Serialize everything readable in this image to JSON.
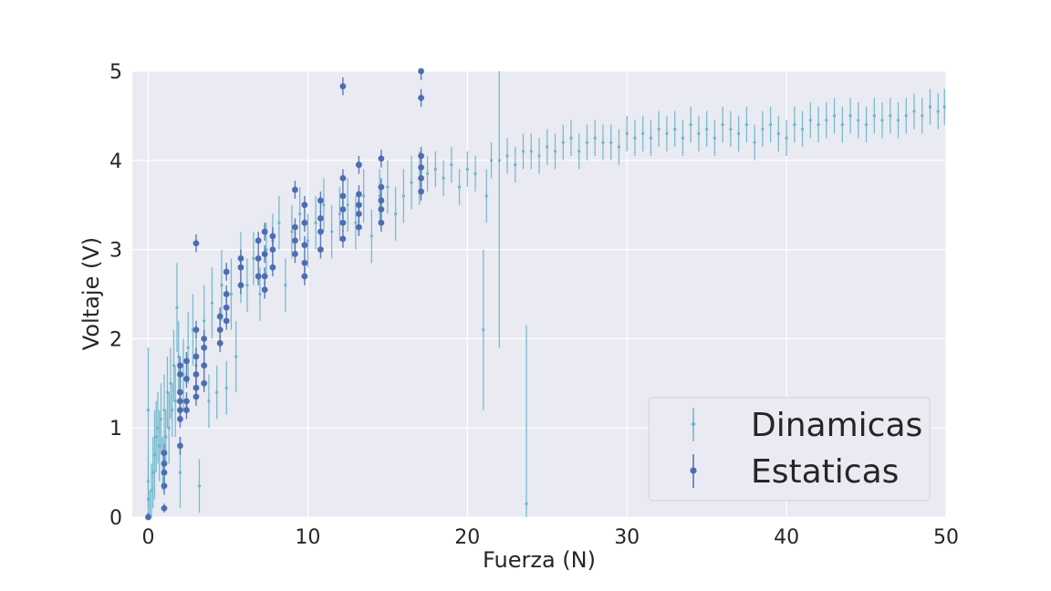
{
  "chart_data": {
    "type": "scatter",
    "xlabel": "Fuerza (N)",
    "ylabel": "Voltaje (V)",
    "xlim": [
      -1,
      50
    ],
    "ylim": [
      0,
      5
    ],
    "xticks": [
      0,
      10,
      20,
      30,
      40,
      50
    ],
    "yticks": [
      0,
      1,
      2,
      3,
      4,
      5
    ],
    "grid": true,
    "legend": {
      "placement": "lower-right"
    },
    "colors": {
      "plot_bg": "#eaeaf2",
      "grid": "#ffffff",
      "dinamicas": "#6ab7cc",
      "estaticas": "#4c6eb0"
    },
    "series": [
      {
        "name": "Dinamicas",
        "marker": "small-dot-errorbar",
        "points": [
          [
            0,
            0.2,
            0.3
          ],
          [
            0,
            0.4,
            0.3
          ],
          [
            0,
            1.2,
            0.7
          ],
          [
            0.1,
            0.0,
            0.3
          ],
          [
            0.2,
            0.3,
            0.3
          ],
          [
            0.3,
            0.5,
            0.4
          ],
          [
            0.4,
            0.7,
            0.5
          ],
          [
            0.5,
            0.9,
            0.4
          ],
          [
            0.6,
            1.0,
            0.4
          ],
          [
            0.7,
            0.8,
            0.4
          ],
          [
            0.8,
            1.1,
            0.4
          ],
          [
            0.9,
            0.6,
            0.3
          ],
          [
            1.0,
            1.2,
            0.4
          ],
          [
            1.1,
            0.9,
            0.3
          ],
          [
            1.2,
            1.4,
            0.4
          ],
          [
            1.3,
            1.0,
            0.4
          ],
          [
            1.4,
            1.5,
            0.4
          ],
          [
            1.5,
            1.2,
            0.3
          ],
          [
            1.6,
            1.7,
            0.4
          ],
          [
            1.7,
            1.3,
            0.4
          ],
          [
            1.8,
            2.35,
            0.5
          ],
          [
            1.9,
            1.8,
            0.4
          ],
          [
            2.0,
            0.5,
            0.4
          ],
          [
            2.2,
            1.6,
            0.4
          ],
          [
            2.5,
            1.9,
            0.4
          ],
          [
            2.8,
            2.1,
            0.4
          ],
          [
            3.0,
            1.7,
            0.3
          ],
          [
            3.2,
            0.35,
            0.3
          ],
          [
            3.5,
            2.2,
            0.4
          ],
          [
            3.8,
            1.3,
            0.3
          ],
          [
            4.0,
            2.4,
            0.4
          ],
          [
            4.3,
            1.4,
            0.3
          ],
          [
            4.6,
            2.6,
            0.4
          ],
          [
            4.9,
            1.45,
            0.3
          ],
          [
            5.2,
            2.5,
            0.4
          ],
          [
            5.5,
            1.8,
            0.4
          ],
          [
            5.8,
            2.8,
            0.4
          ],
          [
            6.2,
            2.6,
            0.3
          ],
          [
            6.6,
            2.9,
            0.3
          ],
          [
            7.0,
            2.5,
            0.3
          ],
          [
            7.4,
            3.0,
            0.3
          ],
          [
            7.8,
            3.1,
            0.3
          ],
          [
            8.2,
            3.3,
            0.3
          ],
          [
            8.6,
            2.6,
            0.3
          ],
          [
            9.0,
            3.2,
            0.3
          ],
          [
            9.5,
            3.4,
            0.3
          ],
          [
            10.0,
            3.1,
            0.3
          ],
          [
            10.5,
            3.3,
            0.3
          ],
          [
            11.0,
            3.5,
            0.3
          ],
          [
            11.5,
            3.2,
            0.3
          ],
          [
            12.0,
            3.4,
            0.3
          ],
          [
            12.5,
            3.5,
            0.3
          ],
          [
            13.0,
            3.3,
            0.3
          ],
          [
            13.5,
            3.6,
            0.3
          ],
          [
            14.0,
            3.15,
            0.3
          ],
          [
            14.5,
            3.6,
            0.3
          ],
          [
            15.0,
            3.7,
            0.3
          ],
          [
            15.5,
            3.4,
            0.3
          ],
          [
            16.0,
            3.6,
            0.3
          ],
          [
            16.5,
            3.75,
            0.3
          ],
          [
            17.0,
            3.8,
            0.3
          ],
          [
            17.5,
            3.85,
            0.2
          ],
          [
            18.0,
            3.9,
            0.2
          ],
          [
            18.5,
            3.8,
            0.2
          ],
          [
            19.0,
            3.95,
            0.2
          ],
          [
            19.5,
            3.7,
            0.2
          ],
          [
            20.0,
            3.9,
            0.2
          ],
          [
            20.5,
            3.85,
            0.2
          ],
          [
            21.0,
            2.1,
            0.9
          ],
          [
            21.2,
            3.6,
            0.3
          ],
          [
            21.5,
            4.0,
            0.2
          ],
          [
            22.0,
            4.0,
            2.1
          ],
          [
            22.5,
            4.05,
            0.2
          ],
          [
            23.0,
            3.95,
            0.2
          ],
          [
            23.5,
            4.1,
            0.2
          ],
          [
            23.7,
            0.15,
            2.0
          ],
          [
            24.0,
            4.1,
            0.2
          ],
          [
            24.5,
            4.05,
            0.2
          ],
          [
            25.0,
            4.15,
            0.2
          ],
          [
            25.5,
            4.1,
            0.2
          ],
          [
            26.0,
            4.2,
            0.2
          ],
          [
            26.5,
            4.25,
            0.2
          ],
          [
            27.0,
            4.1,
            0.2
          ],
          [
            27.5,
            4.2,
            0.2
          ],
          [
            28.0,
            4.25,
            0.2
          ],
          [
            28.5,
            4.2,
            0.2
          ],
          [
            29.0,
            4.2,
            0.2
          ],
          [
            29.5,
            4.15,
            0.2
          ],
          [
            30.0,
            4.3,
            0.2
          ],
          [
            30.5,
            4.25,
            0.2
          ],
          [
            31.0,
            4.3,
            0.2
          ],
          [
            31.5,
            4.25,
            0.2
          ],
          [
            32.0,
            4.35,
            0.2
          ],
          [
            32.5,
            4.3,
            0.2
          ],
          [
            33.0,
            4.35,
            0.2
          ],
          [
            33.5,
            4.25,
            0.2
          ],
          [
            34.0,
            4.4,
            0.2
          ],
          [
            34.5,
            4.3,
            0.2
          ],
          [
            35.0,
            4.35,
            0.2
          ],
          [
            35.5,
            4.25,
            0.2
          ],
          [
            36.0,
            4.4,
            0.2
          ],
          [
            36.5,
            4.35,
            0.2
          ],
          [
            37.0,
            4.3,
            0.2
          ],
          [
            37.5,
            4.4,
            0.2
          ],
          [
            38.0,
            4.2,
            0.2
          ],
          [
            38.5,
            4.35,
            0.2
          ],
          [
            39.0,
            4.4,
            0.2
          ],
          [
            39.5,
            4.3,
            0.2
          ],
          [
            40.0,
            4.25,
            0.2
          ],
          [
            40.5,
            4.4,
            0.2
          ],
          [
            41.0,
            4.35,
            0.2
          ],
          [
            41.5,
            4.45,
            0.2
          ],
          [
            42.0,
            4.4,
            0.2
          ],
          [
            42.5,
            4.45,
            0.2
          ],
          [
            43.0,
            4.5,
            0.2
          ],
          [
            43.5,
            4.4,
            0.2
          ],
          [
            44.0,
            4.5,
            0.2
          ],
          [
            44.5,
            4.45,
            0.2
          ],
          [
            45.0,
            4.4,
            0.2
          ],
          [
            45.5,
            4.5,
            0.2
          ],
          [
            46.0,
            4.45,
            0.2
          ],
          [
            46.5,
            4.5,
            0.2
          ],
          [
            47.0,
            4.45,
            0.2
          ],
          [
            47.5,
            4.5,
            0.2
          ],
          [
            48.0,
            4.55,
            0.2
          ],
          [
            48.5,
            4.5,
            0.2
          ],
          [
            49.0,
            4.6,
            0.2
          ],
          [
            49.5,
            4.55,
            0.2
          ],
          [
            49.9,
            4.6,
            0.2
          ]
        ]
      },
      {
        "name": "Estaticas",
        "marker": "dot-errorbar",
        "points": [
          [
            0,
            0.0,
            0.05
          ],
          [
            1,
            0.1,
            0.05
          ],
          [
            1,
            0.35,
            0.1
          ],
          [
            1,
            0.5,
            0.1
          ],
          [
            1,
            0.6,
            0.1
          ],
          [
            1,
            0.72,
            0.1
          ],
          [
            2,
            0.8,
            0.1
          ],
          [
            2,
            1.1,
            0.1
          ],
          [
            2,
            1.2,
            0.1
          ],
          [
            2,
            1.3,
            0.1
          ],
          [
            2,
            1.4,
            0.1
          ],
          [
            2,
            1.6,
            0.1
          ],
          [
            2,
            1.7,
            0.1
          ],
          [
            2.4,
            1.2,
            0.1
          ],
          [
            2.4,
            1.3,
            0.1
          ],
          [
            2.4,
            1.55,
            0.1
          ],
          [
            2.4,
            1.75,
            0.1
          ],
          [
            3,
            1.35,
            0.1
          ],
          [
            3,
            1.45,
            0.1
          ],
          [
            3,
            1.6,
            0.1
          ],
          [
            3,
            1.8,
            0.1
          ],
          [
            3,
            2.1,
            0.1
          ],
          [
            3,
            3.07,
            0.1
          ],
          [
            3.5,
            1.5,
            0.1
          ],
          [
            3.5,
            1.7,
            0.1
          ],
          [
            3.5,
            1.9,
            0.1
          ],
          [
            3.5,
            2.0,
            0.1
          ],
          [
            4.5,
            1.95,
            0.1
          ],
          [
            4.5,
            2.1,
            0.1
          ],
          [
            4.5,
            2.25,
            0.1
          ],
          [
            4.9,
            2.2,
            0.1
          ],
          [
            4.9,
            2.35,
            0.1
          ],
          [
            4.9,
            2.5,
            0.1
          ],
          [
            4.9,
            2.75,
            0.1
          ],
          [
            5.8,
            2.6,
            0.1
          ],
          [
            5.8,
            2.8,
            0.1
          ],
          [
            5.8,
            2.9,
            0.1
          ],
          [
            6.9,
            2.7,
            0.1
          ],
          [
            6.9,
            2.9,
            0.1
          ],
          [
            6.9,
            3.1,
            0.1
          ],
          [
            7.3,
            2.55,
            0.1
          ],
          [
            7.3,
            2.7,
            0.1
          ],
          [
            7.3,
            2.95,
            0.1
          ],
          [
            7.3,
            3.2,
            0.1
          ],
          [
            7.8,
            2.8,
            0.1
          ],
          [
            7.8,
            3.0,
            0.1
          ],
          [
            7.8,
            3.15,
            0.1
          ],
          [
            9.2,
            2.95,
            0.1
          ],
          [
            9.2,
            3.1,
            0.1
          ],
          [
            9.2,
            3.25,
            0.1
          ],
          [
            9.2,
            3.67,
            0.1
          ],
          [
            9.8,
            2.7,
            0.1
          ],
          [
            9.8,
            2.85,
            0.1
          ],
          [
            9.8,
            3.05,
            0.1
          ],
          [
            9.8,
            3.3,
            0.1
          ],
          [
            9.8,
            3.5,
            0.1
          ],
          [
            10.8,
            3.0,
            0.1
          ],
          [
            10.8,
            3.2,
            0.1
          ],
          [
            10.8,
            3.35,
            0.1
          ],
          [
            10.8,
            3.55,
            0.1
          ],
          [
            12.2,
            3.12,
            0.1
          ],
          [
            12.2,
            3.3,
            0.1
          ],
          [
            12.2,
            3.45,
            0.1
          ],
          [
            12.2,
            3.6,
            0.1
          ],
          [
            12.2,
            3.8,
            0.1
          ],
          [
            12.2,
            4.83,
            0.1
          ],
          [
            13.2,
            3.25,
            0.1
          ],
          [
            13.2,
            3.4,
            0.1
          ],
          [
            13.2,
            3.5,
            0.1
          ],
          [
            13.2,
            3.62,
            0.1
          ],
          [
            13.2,
            3.95,
            0.1
          ],
          [
            14.6,
            3.3,
            0.1
          ],
          [
            14.6,
            3.45,
            0.1
          ],
          [
            14.6,
            3.55,
            0.1
          ],
          [
            14.6,
            3.7,
            0.1
          ],
          [
            14.6,
            4.02,
            0.1
          ],
          [
            17.1,
            3.65,
            0.1
          ],
          [
            17.1,
            3.8,
            0.1
          ],
          [
            17.1,
            3.92,
            0.1
          ],
          [
            17.1,
            4.05,
            0.1
          ],
          [
            17.1,
            4.7,
            0.1
          ],
          [
            17.1,
            5.0,
            0.1
          ]
        ]
      }
    ]
  }
}
